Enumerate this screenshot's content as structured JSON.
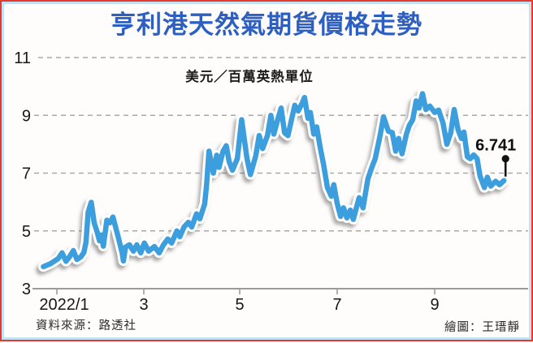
{
  "frame": {
    "outer_border_color": "#e5392e",
    "inner_border_color": "#c2e2f3",
    "background": "#fffdfc"
  },
  "header": {
    "title": "亨利港天然氣期貨價格走勢",
    "title_color": "#2d5fc0"
  },
  "footer": {
    "source": "資料來源：路透社",
    "credit": "繪圖：王瑨靜"
  },
  "chart_data": {
    "type": "line",
    "title": "亨利港天然氣期貨價格走勢",
    "unit_label": "美元／百萬英熱單位",
    "x_unit": "2022年月份",
    "xlabel": "",
    "ylabel": "美元／百萬英熱單位",
    "ylim": [
      3,
      11
    ],
    "y_ticks": [
      3,
      5,
      7,
      9,
      11
    ],
    "x_ticks": [
      {
        "month": 1,
        "label": "2022/1",
        "label_dx": 9
      },
      {
        "month": 3,
        "label": "3",
        "label_dx": 0
      },
      {
        "month": 5,
        "label": "5",
        "label_dx": 0
      },
      {
        "month": 7,
        "label": "7",
        "label_dx": 0
      },
      {
        "month": 9,
        "label": "9",
        "label_dx": 0
      }
    ],
    "grid": "dashed-horizontal",
    "legend": "none",
    "line_color": "#3e9edd",
    "line_casing_color": "#ffffff",
    "grid_color": "#a9a9a9",
    "axis_color": "#9b9b9b",
    "text_color": "#171717",
    "end_annotation": {
      "label": "6.741",
      "value": 6.741
    },
    "points": [
      [
        0.69,
        3.76
      ],
      [
        0.86,
        3.87
      ],
      [
        1.03,
        4.04
      ],
      [
        1.12,
        4.24
      ],
      [
        1.21,
        3.95
      ],
      [
        1.29,
        4.1
      ],
      [
        1.38,
        4.32
      ],
      [
        1.46,
        4.01
      ],
      [
        1.55,
        4.1
      ],
      [
        1.62,
        4.25
      ],
      [
        1.67,
        4.6
      ],
      [
        1.72,
        5.65
      ],
      [
        1.79,
        5.99
      ],
      [
        1.86,
        5.27
      ],
      [
        1.93,
        4.94
      ],
      [
        1.98,
        4.66
      ],
      [
        2.02,
        4.86
      ],
      [
        2.07,
        4.47
      ],
      [
        2.15,
        5.37
      ],
      [
        2.22,
        5.28
      ],
      [
        2.29,
        5.48
      ],
      [
        2.41,
        4.8
      ],
      [
        2.5,
        4.24
      ],
      [
        2.53,
        3.96
      ],
      [
        2.58,
        4.44
      ],
      [
        2.67,
        4.52
      ],
      [
        2.76,
        4.3
      ],
      [
        2.84,
        4.52
      ],
      [
        2.93,
        4.24
      ],
      [
        3.01,
        4.58
      ],
      [
        3.1,
        4.3
      ],
      [
        3.22,
        4.46
      ],
      [
        3.32,
        4.24
      ],
      [
        3.41,
        4.52
      ],
      [
        3.5,
        4.72
      ],
      [
        3.58,
        4.58
      ],
      [
        3.69,
        5.0
      ],
      [
        3.75,
        4.8
      ],
      [
        3.84,
        5.14
      ],
      [
        3.93,
        5.3
      ],
      [
        4.0,
        5.14
      ],
      [
        4.1,
        5.59
      ],
      [
        4.17,
        5.42
      ],
      [
        4.27,
        5.93
      ],
      [
        4.31,
        6.6
      ],
      [
        4.36,
        7.76
      ],
      [
        4.45,
        7.0
      ],
      [
        4.52,
        7.62
      ],
      [
        4.57,
        7.2
      ],
      [
        4.65,
        7.75
      ],
      [
        4.72,
        7.95
      ],
      [
        4.78,
        7.4
      ],
      [
        4.85,
        7.1
      ],
      [
        4.95,
        7.5
      ],
      [
        5.04,
        8.85
      ],
      [
        5.15,
        7.5
      ],
      [
        5.22,
        6.95
      ],
      [
        5.33,
        7.6
      ],
      [
        5.4,
        8.3
      ],
      [
        5.47,
        7.85
      ],
      [
        5.57,
        8.3
      ],
      [
        5.64,
        9.0
      ],
      [
        5.7,
        8.35
      ],
      [
        5.78,
        8.85
      ],
      [
        5.85,
        9.25
      ],
      [
        5.92,
        8.4
      ],
      [
        5.99,
        8.3
      ],
      [
        6.07,
        8.9
      ],
      [
        6.13,
        9.35
      ],
      [
        6.2,
        9.15
      ],
      [
        6.28,
        9.42
      ],
      [
        6.33,
        9.62
      ],
      [
        6.4,
        8.9
      ],
      [
        6.45,
        9.1
      ],
      [
        6.52,
        8.35
      ],
      [
        6.58,
        8.6
      ],
      [
        6.65,
        7.9
      ],
      [
        6.72,
        7.3
      ],
      [
        6.8,
        6.5
      ],
      [
        6.88,
        6.2
      ],
      [
        6.93,
        6.6
      ],
      [
        7.0,
        5.95
      ],
      [
        7.07,
        5.5
      ],
      [
        7.13,
        5.8
      ],
      [
        7.2,
        5.45
      ],
      [
        7.27,
        5.72
      ],
      [
        7.33,
        5.4
      ],
      [
        7.45,
        6.15
      ],
      [
        7.53,
        5.8
      ],
      [
        7.63,
        6.8
      ],
      [
        7.7,
        7.15
      ],
      [
        7.78,
        7.5
      ],
      [
        7.88,
        8.3
      ],
      [
        7.95,
        8.95
      ],
      [
        8.05,
        8.45
      ],
      [
        8.13,
        8.4
      ],
      [
        8.2,
        7.76
      ],
      [
        8.26,
        8.2
      ],
      [
        8.33,
        7.67
      ],
      [
        8.42,
        8.35
      ],
      [
        8.48,
        8.65
      ],
      [
        8.55,
        8.85
      ],
      [
        8.62,
        9.5
      ],
      [
        8.68,
        9.25
      ],
      [
        8.75,
        9.75
      ],
      [
        8.82,
        9.2
      ],
      [
        8.9,
        9.32
      ],
      [
        9.0,
        9.1
      ],
      [
        9.08,
        9.18
      ],
      [
        9.17,
        8.74
      ],
      [
        9.25,
        8.0
      ],
      [
        9.33,
        8.4
      ],
      [
        9.4,
        9.2
      ],
      [
        9.48,
        8.5
      ],
      [
        9.55,
        8.2
      ],
      [
        9.6,
        8.42
      ],
      [
        9.67,
        7.57
      ],
      [
        9.73,
        7.5
      ],
      [
        9.8,
        7.63
      ],
      [
        9.87,
        7.5
      ],
      [
        9.93,
        6.9
      ],
      [
        10.02,
        6.5
      ],
      [
        10.08,
        6.86
      ],
      [
        10.15,
        6.55
      ],
      [
        10.25,
        6.72
      ],
      [
        10.33,
        6.6
      ],
      [
        10.42,
        6.741
      ]
    ]
  }
}
